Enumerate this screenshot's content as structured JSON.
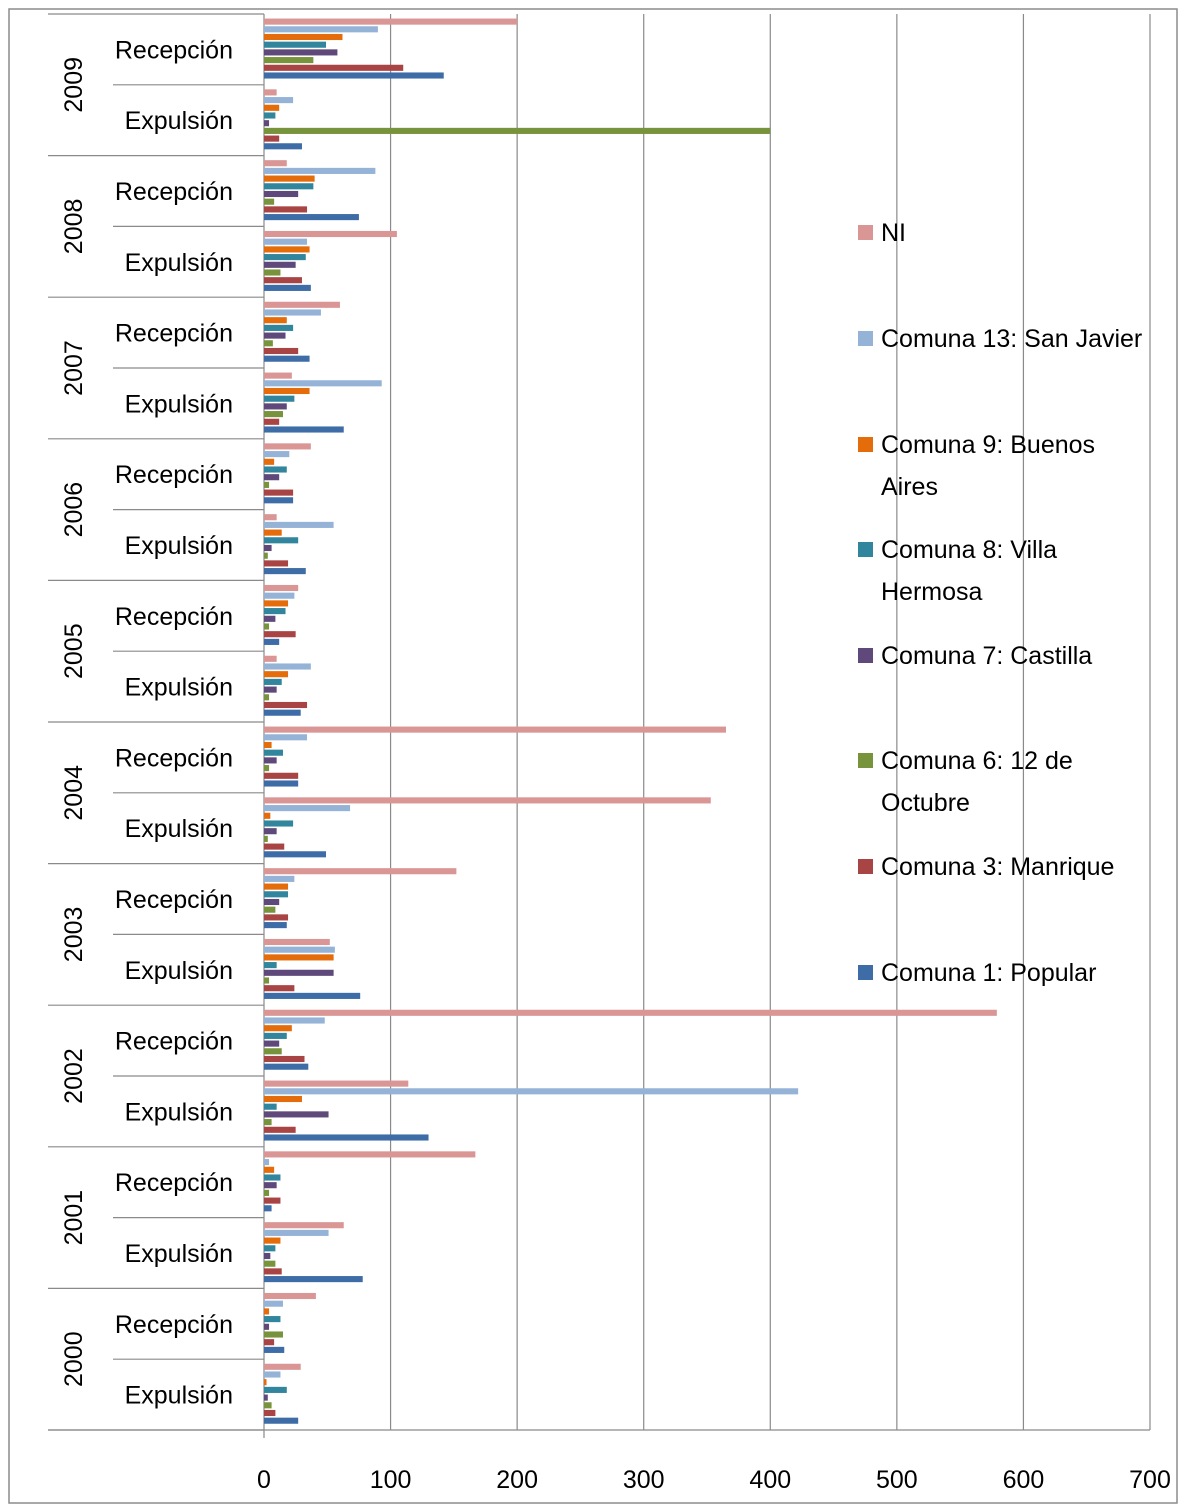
{
  "chart_data": {
    "type": "bar",
    "orientation": "horizontal",
    "title": "",
    "xlabel": "",
    "ylabel": "",
    "xlim": [
      0,
      700
    ],
    "x_ticks": [
      0,
      100,
      200,
      300,
      400,
      500,
      600,
      700
    ],
    "grid": "vertical",
    "legend_position": "right",
    "years": [
      "2009",
      "2008",
      "2007",
      "2006",
      "2005",
      "2004",
      "2003",
      "2002",
      "2001",
      "2000"
    ],
    "subcategories": [
      "Recepción",
      "Expulsión"
    ],
    "series": [
      {
        "name": "NI",
        "color": "#D99694",
        "values": [
          200,
          10,
          18,
          105,
          60,
          22,
          37,
          10,
          27,
          10,
          365,
          353,
          152,
          52,
          579,
          114,
          167,
          63,
          41,
          29
        ]
      },
      {
        "name": "Comuna 13: San Javier",
        "color": "#95B3D7",
        "values": [
          90,
          23,
          88,
          34,
          45,
          93,
          20,
          55,
          24,
          37,
          34,
          68,
          24,
          56,
          48,
          422,
          4,
          51,
          15,
          13
        ]
      },
      {
        "name": "Comuna 9: Buenos Aires",
        "color": "#E46C0A",
        "values": [
          62,
          12,
          40,
          36,
          18,
          36,
          8,
          14,
          19,
          19,
          6,
          5,
          19,
          55,
          22,
          30,
          8,
          13,
          4,
          2
        ]
      },
      {
        "name": "Comuna 8: Villa Hermosa",
        "color": "#31859C",
        "values": [
          49,
          9,
          39,
          33,
          23,
          24,
          18,
          27,
          17,
          14,
          15,
          23,
          19,
          10,
          18,
          10,
          13,
          9,
          13,
          18
        ]
      },
      {
        "name": "Comuna 7: Castilla",
        "color": "#5F497A",
        "values": [
          58,
          4,
          27,
          25,
          17,
          18,
          12,
          6,
          9,
          10,
          10,
          10,
          12,
          55,
          12,
          51,
          10,
          5,
          4,
          3
        ]
      },
      {
        "name": "Comuna 6: 12 de Octubre",
        "color": "#77933C",
        "values": [
          39,
          400,
          8,
          13,
          7,
          15,
          4,
          3,
          4,
          4,
          4,
          3,
          9,
          4,
          14,
          6,
          4,
          9,
          15,
          6
        ]
      },
      {
        "name": "Comuna 3: Manrique",
        "color": "#A84444",
        "values": [
          110,
          12,
          34,
          30,
          27,
          12,
          23,
          19,
          25,
          34,
          27,
          16,
          19,
          24,
          32,
          25,
          13,
          14,
          8,
          9
        ]
      },
      {
        "name": "Comuna 1: Popular",
        "color": "#3E6CA6",
        "values": [
          142,
          30,
          75,
          37,
          36,
          63,
          23,
          33,
          12,
          29,
          27,
          49,
          18,
          76,
          35,
          130,
          6,
          78,
          16,
          27
        ]
      }
    ],
    "legend_order": [
      0,
      1,
      2,
      3,
      4,
      5,
      6,
      7
    ]
  }
}
